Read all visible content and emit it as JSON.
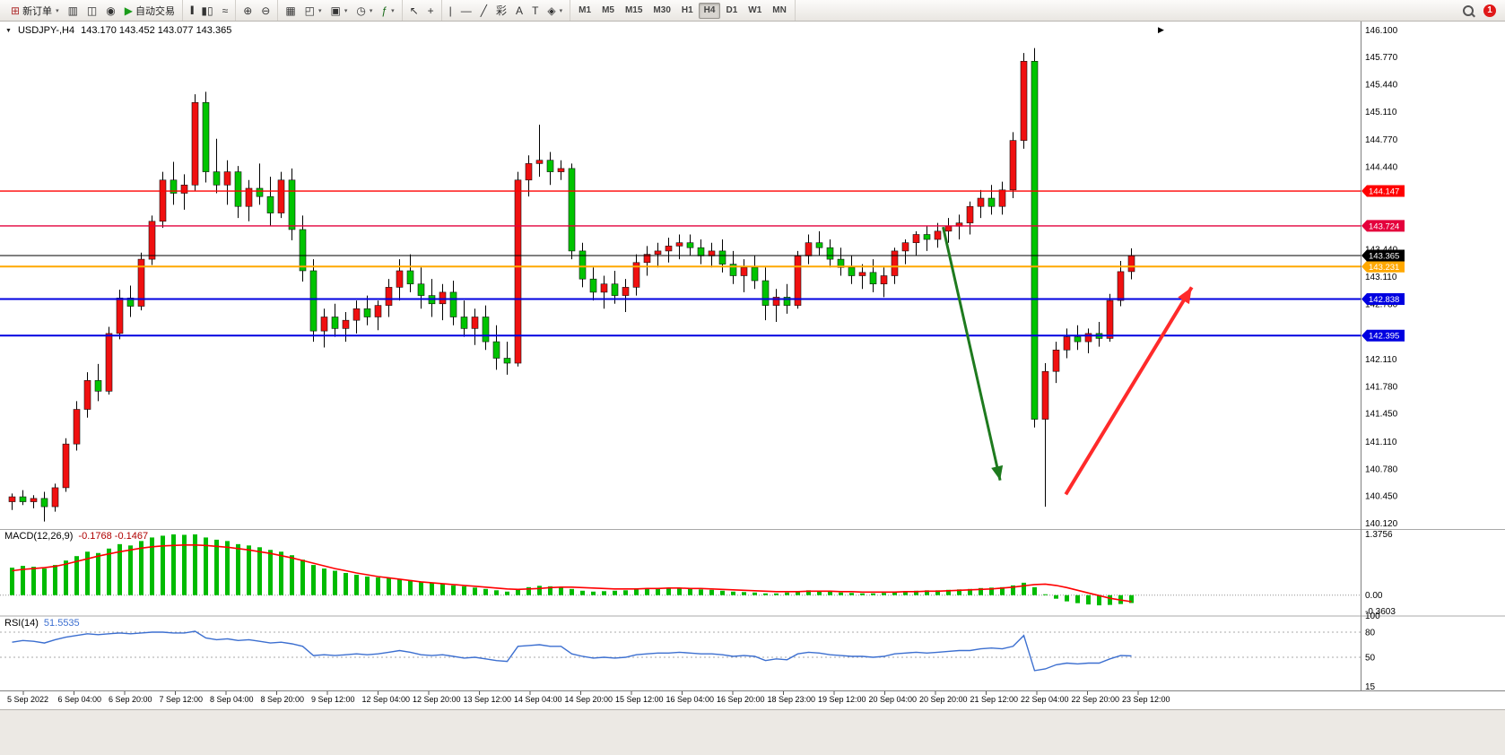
{
  "toolbar": {
    "badge": "1",
    "groups": [
      {
        "items": [
          {
            "name": "new-order-button",
            "glyph": "⊞",
            "glyph_color": "#b03030",
            "label": "新订单",
            "dropdown": true
          },
          {
            "name": "chart-window-icon",
            "glyph": "▥"
          },
          {
            "name": "profiles-icon",
            "glyph": "◫"
          },
          {
            "name": "sound-icon",
            "glyph": "◉"
          },
          {
            "name": "auto-trading-button",
            "glyph": "▶",
            "glyph_color": "#1a9b1a",
            "label": "自动交易"
          }
        ]
      },
      {
        "items": [
          {
            "name": "bar-chart-icon",
            "glyph": "|||",
            "narrow": true
          },
          {
            "name": "candlestick-chart-icon",
            "glyph": "▮▯"
          },
          {
            "name": "line-chart-icon",
            "glyph": "≈"
          }
        ]
      },
      {
        "items": [
          {
            "name": "zoom-in-icon",
            "glyph": "⊕"
          },
          {
            "name": "zoom-out-icon",
            "glyph": "⊖"
          }
        ]
      },
      {
        "items": [
          {
            "name": "tile-windows-icon",
            "glyph": "▦"
          },
          {
            "name": "arrange-windows-icon",
            "glyph": "◰",
            "dropdown": true
          },
          {
            "name": "new-chart-icon",
            "glyph": "▣",
            "dropdown": true
          },
          {
            "name": "period-icon",
            "glyph": "◷",
            "dropdown": true
          },
          {
            "name": "indicators-icon",
            "glyph": "ƒ",
            "glyph_color": "#1a6b1a",
            "dropdown": true
          }
        ]
      },
      {
        "items": [
          {
            "name": "cursor-icon",
            "glyph": "↖"
          },
          {
            "name": "crosshair-icon",
            "glyph": "+"
          }
        ]
      },
      {
        "items": [
          {
            "name": "vertical-line-icon",
            "glyph": "|"
          },
          {
            "name": "horizontal-line-icon",
            "glyph": "—"
          },
          {
            "name": "trendline-icon",
            "glyph": "╱"
          },
          {
            "name": "fibonacci-icon",
            "glyph": "彩"
          },
          {
            "name": "text-icon",
            "glyph": "A"
          },
          {
            "name": "label-icon",
            "glyph": "T"
          },
          {
            "name": "shapes-icon",
            "glyph": "◈",
            "dropdown": true
          }
        ]
      }
    ],
    "timeframes": {
      "items": [
        "M1",
        "M5",
        "M15",
        "M30",
        "H1",
        "H4",
        "D1",
        "W1",
        "MN"
      ],
      "active": "H4"
    }
  },
  "chart_header": {
    "symbol_period": "USDJPY-,H4",
    "ohlc_text": "143.170 143.452 143.077 143.365"
  },
  "chart_data": {
    "type": "candlestick",
    "symbol": "USDJPY-",
    "timeframe": "H4",
    "title": "USDJPY-,H4 143.170 143.452 143.077 143.365",
    "colors": {
      "up": "#f01010",
      "down": "#00c400",
      "wick": "#000000",
      "macd_hist": "#00bb00",
      "macd_signal": "#ff0000",
      "rsi_line": "#3c6fd0"
    },
    "price_axis": {
      "min": 140.12,
      "max": 146.1,
      "ticks": [
        "146.100",
        "145.770",
        "145.440",
        "145.110",
        "144.770",
        "144.440",
        "143.440",
        "143.110",
        "142.780",
        "142.110",
        "141.780",
        "141.450",
        "141.110",
        "140.780",
        "140.450",
        "140.120"
      ]
    },
    "candles": [
      [
        140.38,
        140.48,
        140.28,
        140.44
      ],
      [
        140.44,
        140.52,
        140.34,
        140.38
      ],
      [
        140.38,
        140.46,
        140.3,
        140.42
      ],
      [
        140.42,
        140.5,
        140.14,
        140.32
      ],
      [
        140.32,
        140.6,
        140.26,
        140.55
      ],
      [
        140.55,
        141.15,
        140.5,
        141.08
      ],
      [
        141.08,
        141.6,
        141.0,
        141.5
      ],
      [
        141.5,
        141.95,
        141.4,
        141.85
      ],
      [
        141.85,
        142.05,
        141.6,
        141.72
      ],
      [
        141.72,
        142.5,
        141.68,
        142.42
      ],
      [
        142.42,
        142.95,
        142.35,
        142.85
      ],
      [
        142.85,
        143.0,
        142.62,
        142.75
      ],
      [
        142.75,
        143.4,
        142.7,
        143.32
      ],
      [
        143.32,
        143.85,
        143.25,
        143.78
      ],
      [
        143.78,
        144.38,
        143.7,
        144.28
      ],
      [
        144.28,
        144.5,
        143.98,
        144.12
      ],
      [
        144.12,
        144.35,
        143.92,
        144.22
      ],
      [
        144.22,
        145.32,
        144.15,
        145.22
      ],
      [
        145.22,
        145.35,
        144.25,
        144.38
      ],
      [
        144.38,
        144.78,
        144.12,
        144.22
      ],
      [
        144.22,
        144.52,
        143.98,
        144.38
      ],
      [
        144.38,
        144.45,
        143.82,
        143.96
      ],
      [
        143.96,
        144.28,
        143.78,
        144.18
      ],
      [
        144.18,
        144.48,
        143.98,
        144.08
      ],
      [
        144.08,
        144.32,
        143.72,
        143.88
      ],
      [
        143.88,
        144.38,
        143.82,
        144.28
      ],
      [
        144.28,
        144.42,
        143.55,
        143.68
      ],
      [
        143.68,
        143.85,
        143.05,
        143.18
      ],
      [
        143.18,
        143.32,
        142.32,
        142.45
      ],
      [
        142.45,
        142.72,
        142.25,
        142.62
      ],
      [
        142.62,
        142.78,
        142.38,
        142.48
      ],
      [
        142.48,
        142.68,
        142.32,
        142.58
      ],
      [
        142.58,
        142.82,
        142.42,
        142.72
      ],
      [
        142.72,
        142.88,
        142.52,
        142.62
      ],
      [
        142.62,
        142.82,
        142.46,
        142.76
      ],
      [
        142.76,
        143.08,
        142.62,
        142.98
      ],
      [
        142.98,
        143.32,
        142.82,
        143.18
      ],
      [
        143.18,
        143.38,
        142.92,
        143.02
      ],
      [
        143.02,
        143.22,
        142.72,
        142.88
      ],
      [
        142.88,
        143.08,
        142.62,
        142.78
      ],
      [
        142.78,
        143.02,
        142.58,
        142.92
      ],
      [
        142.92,
        143.06,
        142.52,
        142.62
      ],
      [
        142.62,
        142.82,
        142.38,
        142.48
      ],
      [
        142.48,
        142.72,
        142.28,
        142.62
      ],
      [
        142.62,
        142.76,
        142.22,
        142.32
      ],
      [
        142.32,
        142.52,
        141.98,
        142.12
      ],
      [
        142.12,
        142.32,
        141.92,
        142.06
      ],
      [
        142.06,
        144.38,
        142.02,
        144.28
      ],
      [
        144.28,
        144.58,
        144.08,
        144.48
      ],
      [
        144.48,
        144.95,
        144.32,
        144.52
      ],
      [
        144.52,
        144.62,
        144.22,
        144.38
      ],
      [
        144.38,
        144.52,
        144.28,
        144.42
      ],
      [
        144.42,
        144.48,
        143.32,
        143.42
      ],
      [
        143.42,
        143.52,
        142.98,
        143.08
      ],
      [
        143.08,
        143.22,
        142.82,
        142.92
      ],
      [
        142.92,
        143.12,
        142.72,
        143.02
      ],
      [
        143.02,
        143.18,
        142.78,
        142.88
      ],
      [
        142.88,
        143.08,
        142.68,
        142.98
      ],
      [
        142.98,
        143.38,
        142.88,
        143.28
      ],
      [
        143.28,
        143.48,
        143.12,
        143.38
      ],
      [
        143.38,
        143.52,
        143.22,
        143.42
      ],
      [
        143.42,
        143.58,
        143.28,
        143.48
      ],
      [
        143.48,
        143.62,
        143.32,
        143.52
      ],
      [
        143.52,
        143.62,
        143.36,
        143.46
      ],
      [
        143.46,
        143.56,
        143.26,
        143.36
      ],
      [
        143.36,
        143.52,
        143.22,
        143.42
      ],
      [
        143.42,
        143.56,
        143.16,
        143.26
      ],
      [
        143.26,
        143.42,
        143.02,
        143.12
      ],
      [
        143.12,
        143.32,
        142.92,
        143.22
      ],
      [
        143.22,
        143.36,
        142.96,
        143.06
      ],
      [
        143.06,
        143.22,
        142.58,
        142.76
      ],
      [
        142.76,
        142.96,
        142.56,
        142.86
      ],
      [
        142.86,
        143.02,
        142.66,
        142.76
      ],
      [
        142.76,
        143.42,
        142.72,
        143.36
      ],
      [
        143.36,
        143.62,
        143.26,
        143.52
      ],
      [
        143.52,
        143.66,
        143.36,
        143.46
      ],
      [
        143.46,
        143.56,
        143.22,
        143.32
      ],
      [
        143.32,
        143.46,
        143.12,
        143.22
      ],
      [
        143.22,
        143.36,
        143.02,
        143.12
      ],
      [
        143.12,
        143.26,
        142.96,
        143.16
      ],
      [
        143.16,
        143.32,
        142.92,
        143.02
      ],
      [
        143.02,
        143.22,
        142.86,
        143.12
      ],
      [
        143.12,
        143.46,
        143.02,
        143.42
      ],
      [
        143.42,
        143.56,
        143.26,
        143.52
      ],
      [
        143.52,
        143.66,
        143.36,
        143.62
      ],
      [
        143.62,
        143.72,
        143.42,
        143.56
      ],
      [
        143.56,
        143.76,
        143.46,
        143.66
      ],
      [
        143.66,
        143.82,
        143.52,
        143.72
      ],
      [
        143.72,
        143.86,
        143.56,
        143.76
      ],
      [
        143.76,
        144.02,
        143.62,
        143.96
      ],
      [
        143.96,
        144.16,
        143.82,
        144.06
      ],
      [
        144.06,
        144.22,
        143.86,
        143.96
      ],
      [
        143.96,
        144.26,
        143.86,
        144.16
      ],
      [
        144.16,
        144.86,
        144.06,
        144.76
      ],
      [
        144.76,
        145.82,
        144.66,
        145.72
      ],
      [
        145.72,
        145.88,
        141.28,
        141.38
      ],
      [
        141.38,
        142.06,
        140.32,
        141.96
      ],
      [
        141.96,
        142.32,
        141.82,
        142.22
      ],
      [
        142.22,
        142.48,
        142.12,
        142.38
      ],
      [
        142.38,
        142.52,
        142.22,
        142.32
      ],
      [
        142.32,
        142.48,
        142.18,
        142.42
      ],
      [
        142.42,
        142.56,
        142.26,
        142.36
      ],
      [
        142.36,
        142.9,
        142.32,
        142.82
      ],
      [
        142.82,
        143.3,
        142.75,
        143.17
      ],
      [
        143.17,
        143.452,
        143.077,
        143.365
      ]
    ],
    "hlines": [
      {
        "price": 144.147,
        "label": "144.147",
        "color": "#ff0000",
        "width": 1.4
      },
      {
        "price": 143.724,
        "label": "143.724",
        "color": "#e4003c",
        "width": 1.4
      },
      {
        "price": 143.231,
        "label": "143.231",
        "color": "#ffa800",
        "width": 2
      },
      {
        "price": 142.838,
        "label": "142.838",
        "color": "#0000e0",
        "width": 2
      },
      {
        "price": 142.395,
        "label": "142.395",
        "color": "#0000e0",
        "width": 2
      }
    ],
    "bid": {
      "price": 143.365,
      "label": "143.365",
      "color": "#000000"
    },
    "annotations": [
      {
        "name": "down-trend-arrow",
        "color": "#1e7a1e",
        "width": 3,
        "from": {
          "i": 86.5,
          "price": 143.71
        },
        "to": {
          "i": 91.8,
          "price": 140.64
        }
      },
      {
        "name": "up-trend-arrow",
        "color": "#ff2a2a",
        "width": 4,
        "from": {
          "i": 97.9,
          "price": 140.47
        },
        "to": {
          "i": 109.6,
          "price": 142.98
        }
      }
    ],
    "macd": {
      "label": "MACD(12,26,9)",
      "values_text": "-0.1768 -0.1467",
      "axis_ticks": [
        {
          "value": 1.3756,
          "label": "1.3756"
        },
        {
          "value": 0,
          "label": "0.00"
        },
        {
          "value": -0.3603,
          "label": "-0.3603"
        }
      ],
      "histogram": [
        0.62,
        0.66,
        0.64,
        0.6,
        0.68,
        0.78,
        0.88,
        0.98,
        0.95,
        1.05,
        1.15,
        1.12,
        1.22,
        1.3,
        1.34,
        1.37,
        1.36,
        1.37,
        1.3,
        1.25,
        1.22,
        1.15,
        1.12,
        1.08,
        1.02,
        0.98,
        0.9,
        0.8,
        0.68,
        0.6,
        0.55,
        0.5,
        0.46,
        0.42,
        0.4,
        0.38,
        0.36,
        0.34,
        0.3,
        0.27,
        0.25,
        0.22,
        0.2,
        0.17,
        0.14,
        0.11,
        0.08,
        0.14,
        0.18,
        0.21,
        0.2,
        0.18,
        0.14,
        0.1,
        0.08,
        0.09,
        0.1,
        0.11,
        0.13,
        0.15,
        0.16,
        0.16,
        0.15,
        0.14,
        0.13,
        0.12,
        0.1,
        0.08,
        0.07,
        0.06,
        0.04,
        0.04,
        0.06,
        0.09,
        0.11,
        0.1,
        0.08,
        0.06,
        0.05,
        0.04,
        0.04,
        0.05,
        0.07,
        0.09,
        0.1,
        0.11,
        0.11,
        0.12,
        0.13,
        0.14,
        0.16,
        0.17,
        0.18,
        0.22,
        0.28,
        0.18,
        0.02,
        -0.08,
        -0.14,
        -0.18,
        -0.21,
        -0.23,
        -0.22,
        -0.2,
        -0.177
      ],
      "signal": [
        0.55,
        0.58,
        0.6,
        0.62,
        0.65,
        0.7,
        0.76,
        0.82,
        0.88,
        0.93,
        0.98,
        1.02,
        1.06,
        1.09,
        1.11,
        1.12,
        1.13,
        1.13,
        1.12,
        1.1,
        1.08,
        1.05,
        1.02,
        0.98,
        0.94,
        0.89,
        0.84,
        0.78,
        0.72,
        0.66,
        0.6,
        0.55,
        0.5,
        0.46,
        0.42,
        0.39,
        0.36,
        0.33,
        0.3,
        0.28,
        0.26,
        0.24,
        0.22,
        0.2,
        0.18,
        0.16,
        0.14,
        0.13,
        0.14,
        0.15,
        0.17,
        0.18,
        0.18,
        0.17,
        0.16,
        0.15,
        0.14,
        0.14,
        0.14,
        0.15,
        0.15,
        0.16,
        0.16,
        0.15,
        0.15,
        0.14,
        0.13,
        0.12,
        0.11,
        0.1,
        0.09,
        0.08,
        0.08,
        0.08,
        0.09,
        0.09,
        0.09,
        0.08,
        0.08,
        0.07,
        0.07,
        0.07,
        0.07,
        0.08,
        0.08,
        0.09,
        0.09,
        0.1,
        0.11,
        0.12,
        0.13,
        0.14,
        0.16,
        0.18,
        0.21,
        0.24,
        0.25,
        0.22,
        0.17,
        0.11,
        0.05,
        -0.01,
        -0.07,
        -0.11,
        -0.1467
      ]
    },
    "rsi": {
      "label": "RSI(14)",
      "value_text": "51.5535",
      "levels": [
        80,
        50
      ],
      "axis_ticks": [
        {
          "value": 100,
          "label": "100"
        },
        {
          "value": 80,
          "label": "80"
        },
        {
          "value": 50,
          "label": "50"
        },
        {
          "value": 15,
          "label": "15"
        }
      ],
      "values": [
        68,
        70,
        69,
        67,
        71,
        74,
        76,
        78,
        77,
        78,
        79,
        78,
        79,
        80,
        80,
        79,
        79,
        81,
        73,
        71,
        72,
        70,
        71,
        69,
        67,
        68,
        66,
        63,
        52,
        53,
        52,
        53,
        54,
        53,
        54,
        56,
        58,
        56,
        53,
        52,
        53,
        51,
        49,
        50,
        48,
        46,
        45,
        63,
        64,
        65,
        63,
        63,
        54,
        51,
        49,
        50,
        49,
        50,
        53,
        54,
        55,
        55,
        56,
        55,
        54,
        54,
        53,
        51,
        52,
        51,
        46,
        48,
        47,
        54,
        56,
        55,
        53,
        52,
        51,
        51,
        50,
        51,
        54,
        55,
        56,
        55,
        56,
        57,
        58,
        58,
        60,
        61,
        60,
        63,
        76,
        34,
        36,
        41,
        43,
        42,
        43,
        43,
        48,
        52,
        51.55
      ]
    },
    "time_axis": [
      "5 Sep 2022",
      "6 Sep 04:00",
      "6 Sep 20:00",
      "7 Sep 12:00",
      "8 Sep 04:00",
      "8 Sep 20:00",
      "9 Sep 12:00",
      "12 Sep 04:00",
      "12 Sep 20:00",
      "13 Sep 12:00",
      "14 Sep 04:00",
      "14 Sep 20:00",
      "15 Sep 12:00",
      "16 Sep 04:00",
      "16 Sep 20:00",
      "18 Sep 23:00",
      "19 Sep 12:00",
      "20 Sep 04:00",
      "20 Sep 20:00",
      "21 Sep 12:00",
      "22 Sep 04:00",
      "22 Sep 20:00",
      "23 Sep 12:00"
    ]
  }
}
